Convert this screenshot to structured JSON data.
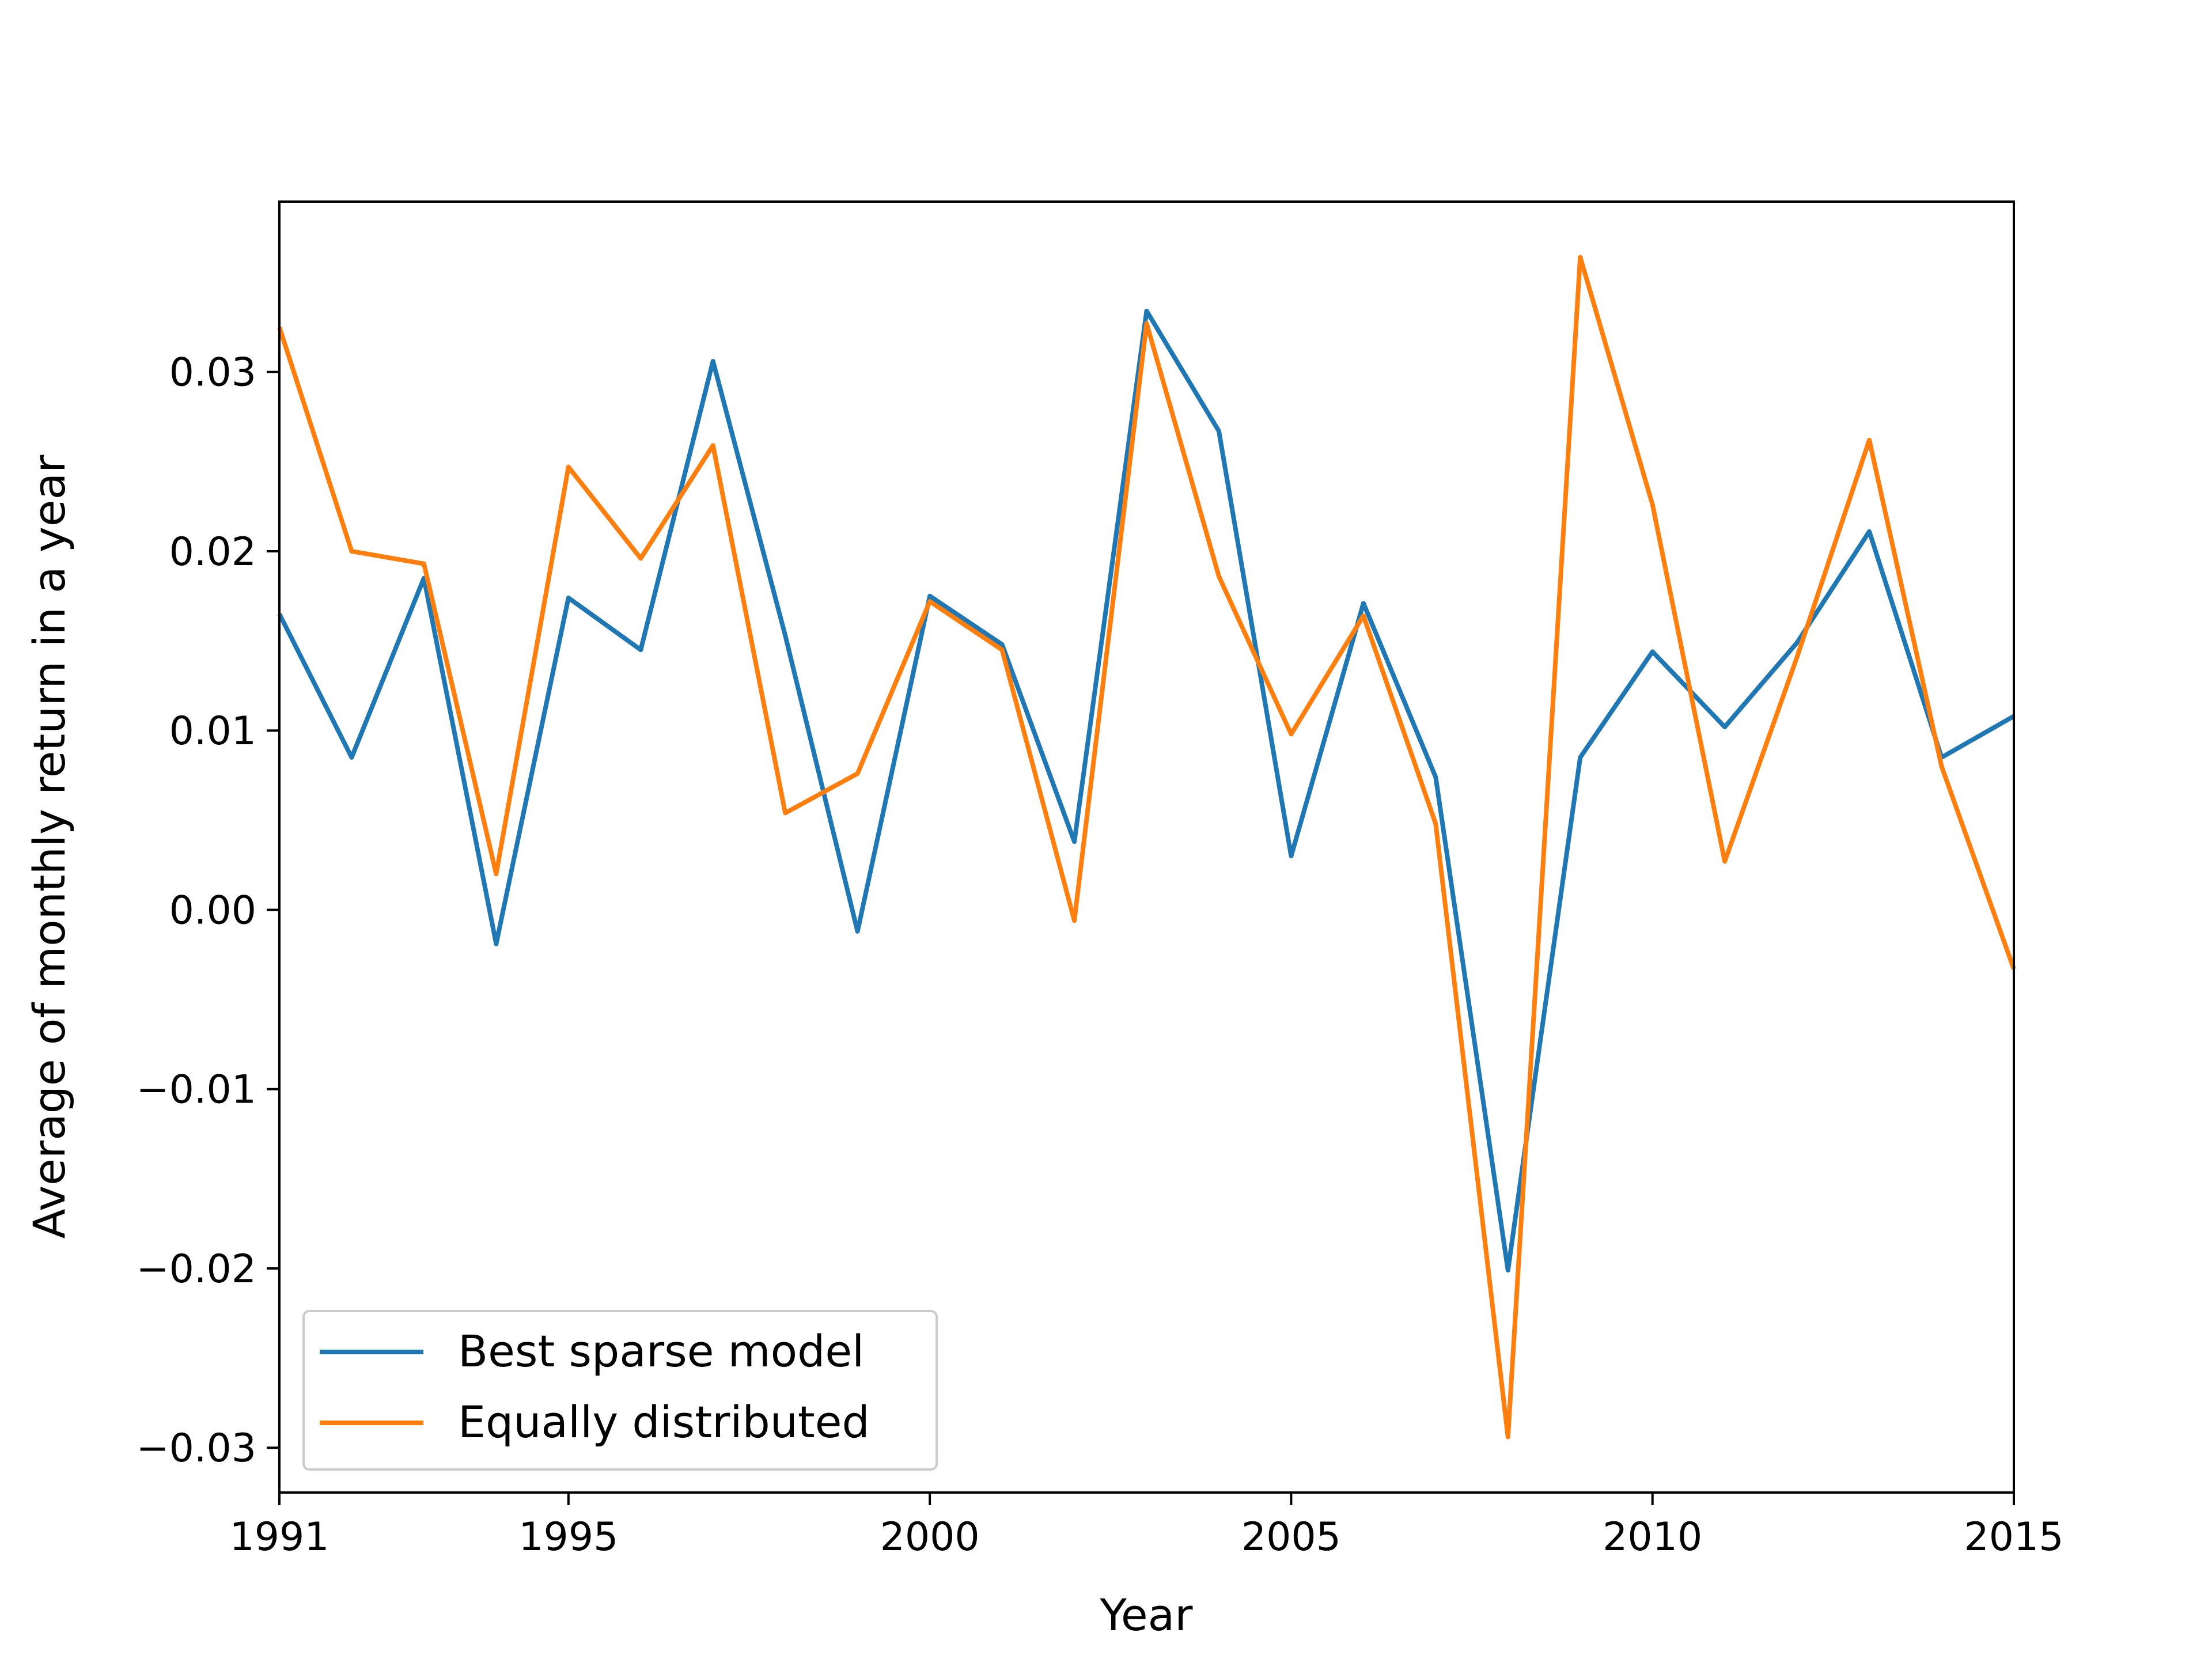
{
  "chart_data": {
    "type": "line",
    "title": "",
    "xlabel": "Year",
    "ylabel": "Average of monthly return in a year",
    "xlim": [
      1991,
      2015
    ],
    "ylim": [
      -0.0325,
      0.0395
    ],
    "xticks": [
      1991,
      1995,
      2000,
      2005,
      2010,
      2015
    ],
    "xtick_labels": [
      "1991",
      "1995",
      "2000",
      "2005",
      "2010",
      "2015"
    ],
    "yticks": [
      -0.03,
      -0.02,
      -0.01,
      0.0,
      0.01,
      0.02,
      0.03
    ],
    "ytick_labels": [
      "−0.03",
      "−0.02",
      "−0.01",
      "0.00",
      "0.01",
      "0.02",
      "0.03"
    ],
    "grid": false,
    "legend_position": "lower-left",
    "x": [
      1991,
      1992,
      1993,
      1994,
      1995,
      1996,
      1997,
      1998,
      1999,
      2000,
      2001,
      2002,
      2003,
      2004,
      2005,
      2006,
      2007,
      2008,
      2009,
      2010,
      2011,
      2012,
      2013,
      2014,
      2015
    ],
    "series": [
      {
        "name": "Best sparse model",
        "color": "#1f77b4",
        "values": [
          0.0165,
          0.0085,
          0.0185,
          -0.0019,
          0.0174,
          0.0145,
          0.0306,
          0.0153,
          -0.0012,
          0.0175,
          0.0148,
          0.0038,
          0.0334,
          0.0267,
          0.003,
          0.0171,
          0.0074,
          -0.0201,
          0.0085,
          0.0144,
          0.0102,
          0.0149,
          0.0211,
          0.0085,
          0.0108
        ]
      },
      {
        "name": "Equally distributed",
        "color": "#ff7f0e",
        "values": [
          0.0325,
          0.02,
          0.0193,
          0.002,
          0.0247,
          0.0196,
          0.0259,
          0.0054,
          0.0076,
          0.0172,
          0.0145,
          -0.0006,
          0.0327,
          0.0186,
          0.0098,
          0.0164,
          0.0048,
          -0.0294,
          0.0364,
          0.0226,
          0.0027,
          0.0141,
          0.0262,
          0.008,
          -0.0033
        ]
      }
    ]
  }
}
